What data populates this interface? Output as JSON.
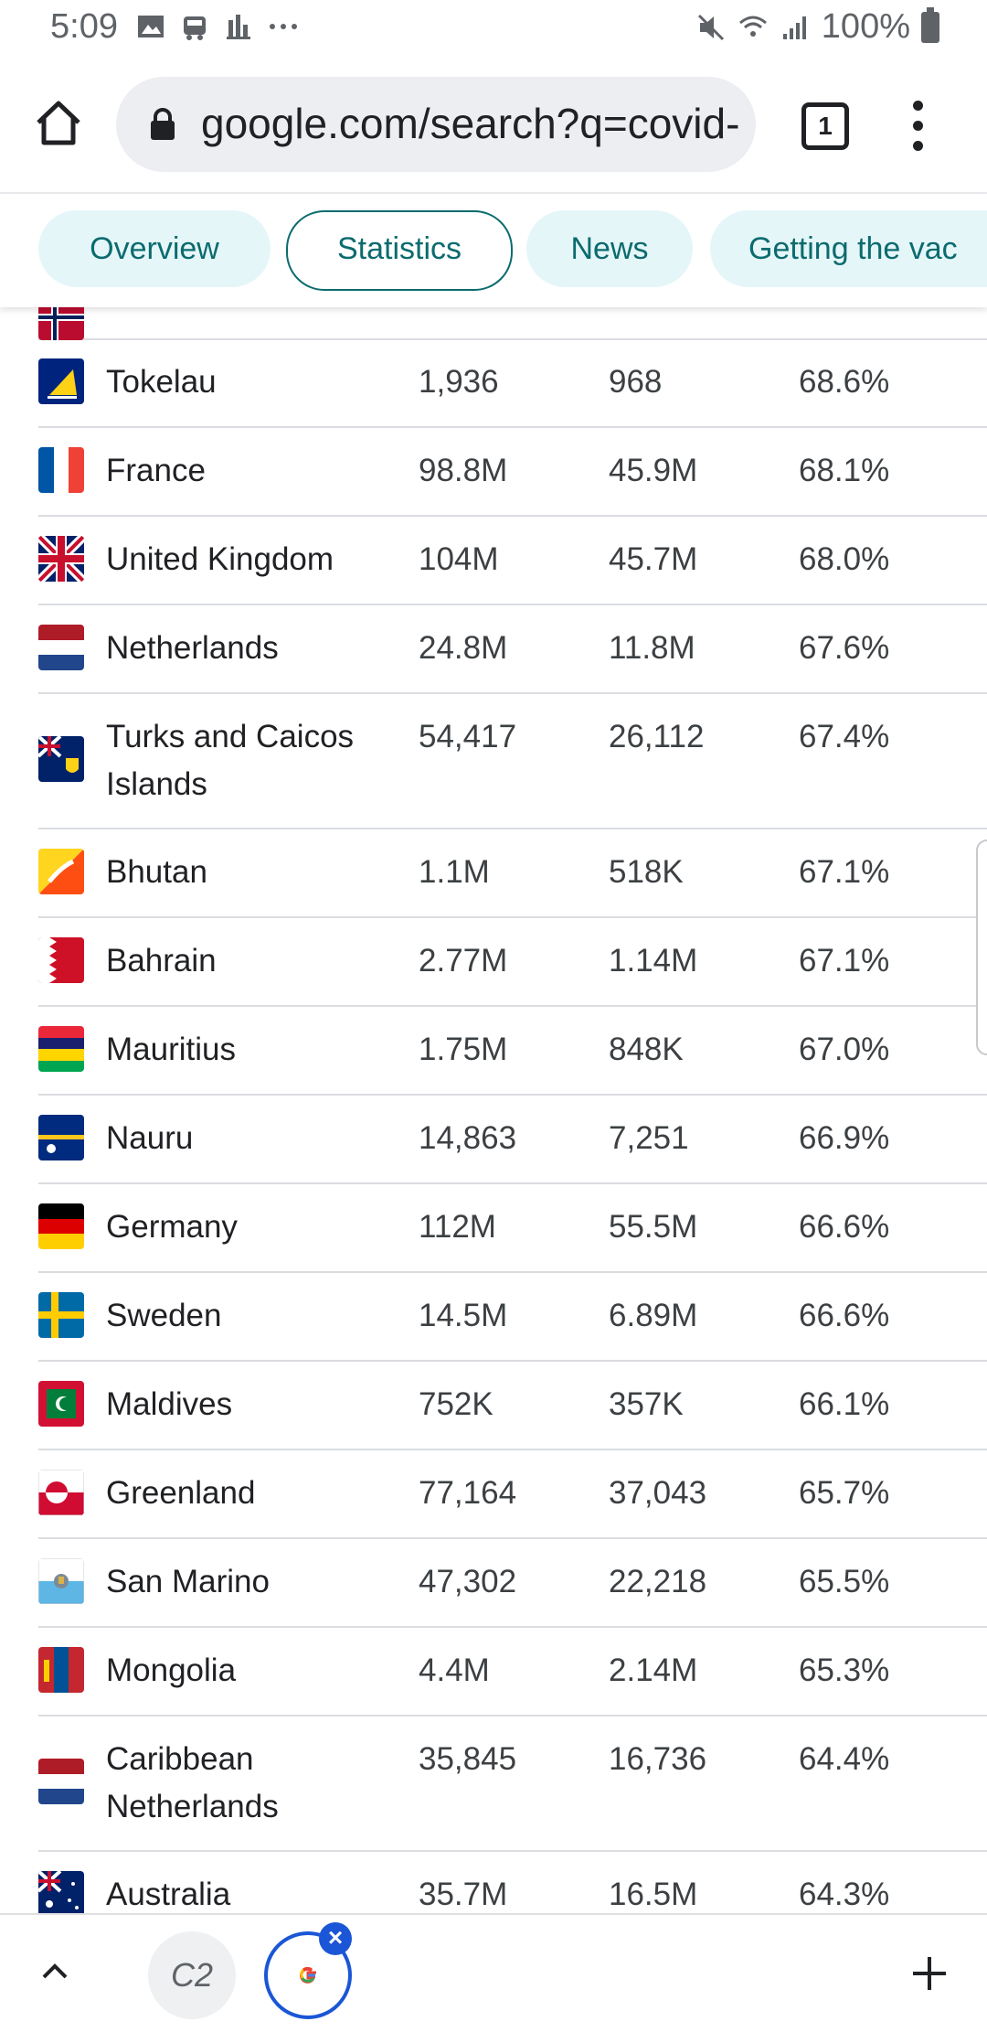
{
  "status_bar": {
    "time": "5:09",
    "battery": "100%"
  },
  "browser": {
    "url": "google.com/search?q=covid-",
    "tab_count": "1"
  },
  "chips": [
    {
      "label": "Overview",
      "active": false
    },
    {
      "label": "Statistics",
      "active": true
    },
    {
      "label": "News",
      "active": false
    },
    {
      "label": "Getting the vac",
      "active": false
    }
  ],
  "rows": [
    {
      "country": "Tokelau",
      "flag": "flag-tokelau",
      "col1": "1,936",
      "col2": "968",
      "col3": "68.6%"
    },
    {
      "country": "France",
      "flag": "flag-france",
      "col1": "98.8M",
      "col2": "45.9M",
      "col3": "68.1%"
    },
    {
      "country": "United Kingdom",
      "flag": "flag-united-kingdom",
      "col1": "104M",
      "col2": "45.7M",
      "col3": "68.0%"
    },
    {
      "country": "Netherlands",
      "flag": "flag-netherlands",
      "col1": "24.8M",
      "col2": "11.8M",
      "col3": "67.6%"
    },
    {
      "country": "Turks and Caicos Islands",
      "flag": "flag-turks-caicos",
      "col1": "54,417",
      "col2": "26,112",
      "col3": "67.4%"
    },
    {
      "country": "Bhutan",
      "flag": "flag-bhutan",
      "col1": "1.1M",
      "col2": "518K",
      "col3": "67.1%"
    },
    {
      "country": "Bahrain",
      "flag": "flag-bahrain",
      "col1": "2.77M",
      "col2": "1.14M",
      "col3": "67.1%"
    },
    {
      "country": "Mauritius",
      "flag": "flag-mauritius",
      "col1": "1.75M",
      "col2": "848K",
      "col3": "67.0%"
    },
    {
      "country": "Nauru",
      "flag": "flag-nauru",
      "col1": "14,863",
      "col2": "7,251",
      "col3": "66.9%"
    },
    {
      "country": "Germany",
      "flag": "flag-germany",
      "col1": "112M",
      "col2": "55.5M",
      "col3": "66.6%"
    },
    {
      "country": "Sweden",
      "flag": "flag-sweden",
      "col1": "14.5M",
      "col2": "6.89M",
      "col3": "66.6%"
    },
    {
      "country": "Maldives",
      "flag": "flag-maldives",
      "col1": "752K",
      "col2": "357K",
      "col3": "66.1%"
    },
    {
      "country": "Greenland",
      "flag": "flag-greenland",
      "col1": "77,164",
      "col2": "37,043",
      "col3": "65.7%"
    },
    {
      "country": "San Marino",
      "flag": "flag-san-marino",
      "col1": "47,302",
      "col2": "22,218",
      "col3": "65.5%"
    },
    {
      "country": "Mongolia",
      "flag": "flag-mongolia",
      "col1": "4.4M",
      "col2": "2.14M",
      "col3": "65.3%"
    },
    {
      "country": "Caribbean Netherlands",
      "flag": "flag-caribbean-netherlands",
      "col1": "35,845",
      "col2": "16,736",
      "col3": "64.4%"
    },
    {
      "country": "Australia",
      "flag": "flag-australia",
      "col1": "35.7M",
      "col2": "16.5M",
      "col3": "64.3%"
    }
  ],
  "bottom_bar": {
    "tab1_label": "C2"
  },
  "colors": {
    "chip_bg": "#e5f6f9",
    "chip_text": "#0b6b6e",
    "accent_blue": "#1a56d6"
  }
}
